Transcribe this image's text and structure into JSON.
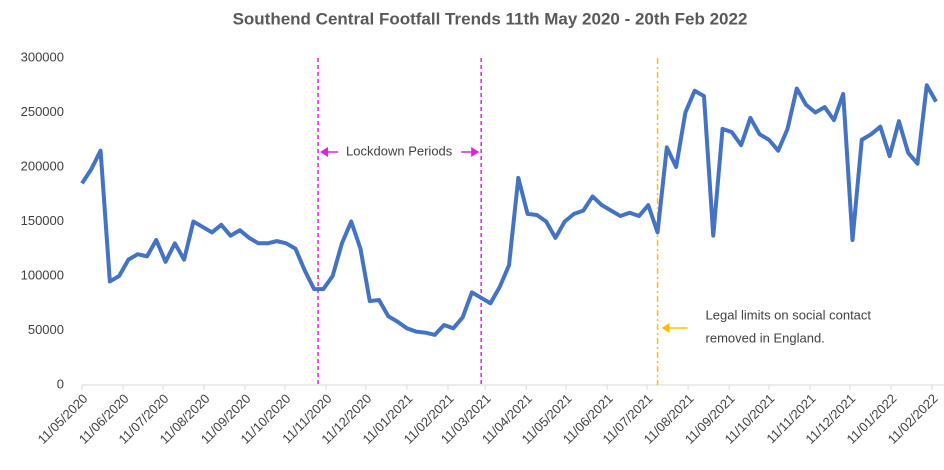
{
  "chart_data": {
    "type": "line",
    "title": "Southend Central Footfall Trends 11th May 2020 - 20th Feb 2022",
    "x": [
      "2020-05-11",
      "2020-05-18",
      "2020-05-25",
      "2020-06-01",
      "2020-06-08",
      "2020-06-15",
      "2020-06-22",
      "2020-06-29",
      "2020-07-06",
      "2020-07-13",
      "2020-07-20",
      "2020-07-27",
      "2020-08-03",
      "2020-08-10",
      "2020-08-17",
      "2020-08-24",
      "2020-08-31",
      "2020-09-07",
      "2020-09-14",
      "2020-09-21",
      "2020-09-28",
      "2020-10-05",
      "2020-10-12",
      "2020-10-19",
      "2020-10-26",
      "2020-11-02",
      "2020-11-09",
      "2020-11-16",
      "2020-11-23",
      "2020-11-30",
      "2020-12-07",
      "2020-12-14",
      "2020-12-21",
      "2020-12-28",
      "2021-01-04",
      "2021-01-11",
      "2021-01-18",
      "2021-01-25",
      "2021-02-01",
      "2021-02-08",
      "2021-02-15",
      "2021-02-22",
      "2021-03-01",
      "2021-03-08",
      "2021-03-15",
      "2021-03-22",
      "2021-03-29",
      "2021-04-05",
      "2021-04-12",
      "2021-04-19",
      "2021-04-26",
      "2021-05-03",
      "2021-05-10",
      "2021-05-17",
      "2021-05-24",
      "2021-05-31",
      "2021-06-07",
      "2021-06-14",
      "2021-06-21",
      "2021-06-28",
      "2021-07-05",
      "2021-07-12",
      "2021-07-19",
      "2021-07-26",
      "2021-08-02",
      "2021-08-09",
      "2021-08-16",
      "2021-08-23",
      "2021-08-30",
      "2021-09-06",
      "2021-09-13",
      "2021-09-20",
      "2021-09-27",
      "2021-10-04",
      "2021-10-11",
      "2021-10-18",
      "2021-10-25",
      "2021-11-01",
      "2021-11-08",
      "2021-11-15",
      "2021-11-22",
      "2021-11-29",
      "2021-12-06",
      "2021-12-13",
      "2021-12-20",
      "2021-12-27",
      "2022-01-03",
      "2022-01-10",
      "2022-01-17",
      "2022-01-24",
      "2022-01-31",
      "2022-02-07",
      "2022-02-14"
    ],
    "series": [
      {
        "name": "Footfall",
        "color": "#4472c4",
        "values": [
          185000,
          198000,
          215000,
          95000,
          100000,
          115000,
          120000,
          118000,
          133000,
          113000,
          130000,
          115000,
          150000,
          145000,
          140000,
          147000,
          137000,
          142000,
          135000,
          130000,
          130000,
          132000,
          130000,
          125000,
          105000,
          88000,
          88000,
          100000,
          130000,
          150000,
          125000,
          77000,
          78000,
          63000,
          58000,
          52000,
          49000,
          48000,
          46000,
          55000,
          52000,
          62000,
          85000,
          80000,
          75000,
          90000,
          110000,
          190000,
          157000,
          156000,
          150000,
          135000,
          150000,
          157000,
          160000,
          173000,
          165000,
          160000,
          155000,
          158000,
          155000,
          165000,
          140000,
          218000,
          200000,
          250000,
          270000,
          265000,
          137000,
          235000,
          232000,
          220000,
          245000,
          230000,
          225000,
          215000,
          235000,
          272000,
          257000,
          250000,
          255000,
          243000,
          267000,
          133000,
          225000,
          230000,
          237000,
          210000,
          242000,
          213000,
          203000,
          275000,
          260000
        ]
      }
    ],
    "xlim": [
      "2020-05-11",
      "2022-02-20"
    ],
    "xticks": [
      {
        "value": "2020-05-11",
        "label": "11/05/2020"
      },
      {
        "value": "2020-06-11",
        "label": "11/06/2020"
      },
      {
        "value": "2020-07-11",
        "label": "11/07/2020"
      },
      {
        "value": "2020-08-11",
        "label": "11/08/2020"
      },
      {
        "value": "2020-09-11",
        "label": "11/09/2020"
      },
      {
        "value": "2020-10-11",
        "label": "11/10/2020"
      },
      {
        "value": "2020-11-11",
        "label": "11/11/2020"
      },
      {
        "value": "2020-12-11",
        "label": "11/12/2020"
      },
      {
        "value": "2021-01-11",
        "label": "11/01/2021"
      },
      {
        "value": "2021-02-11",
        "label": "11/02/2021"
      },
      {
        "value": "2021-03-11",
        "label": "11/03/2021"
      },
      {
        "value": "2021-04-11",
        "label": "11/04/2021"
      },
      {
        "value": "2021-05-11",
        "label": "11/05/2021"
      },
      {
        "value": "2021-06-11",
        "label": "11/06/2021"
      },
      {
        "value": "2021-07-11",
        "label": "11/07/2021"
      },
      {
        "value": "2021-08-11",
        "label": "11/08/2021"
      },
      {
        "value": "2021-09-11",
        "label": "11/09/2021"
      },
      {
        "value": "2021-10-11",
        "label": "11/10/2021"
      },
      {
        "value": "2021-11-11",
        "label": "11/11/2021"
      },
      {
        "value": "2021-12-11",
        "label": "11/12/2021"
      },
      {
        "value": "2022-01-11",
        "label": "11/01/2022"
      },
      {
        "value": "2022-02-11",
        "label": "11/02/2022"
      }
    ],
    "ylim": [
      0,
      300000
    ],
    "yticks": [
      0,
      50000,
      100000,
      150000,
      200000,
      250000,
      300000
    ],
    "grid": false,
    "vlines": [
      {
        "x": "2020-11-05",
        "color": "#e020e0"
      },
      {
        "x": "2021-03-08",
        "color": "#e020e0"
      },
      {
        "x": "2021-07-19",
        "color": "#ffc000"
      }
    ],
    "annotations": [
      "Lockdown Periods",
      "Legal limits on social contact",
      "removed in England."
    ]
  }
}
